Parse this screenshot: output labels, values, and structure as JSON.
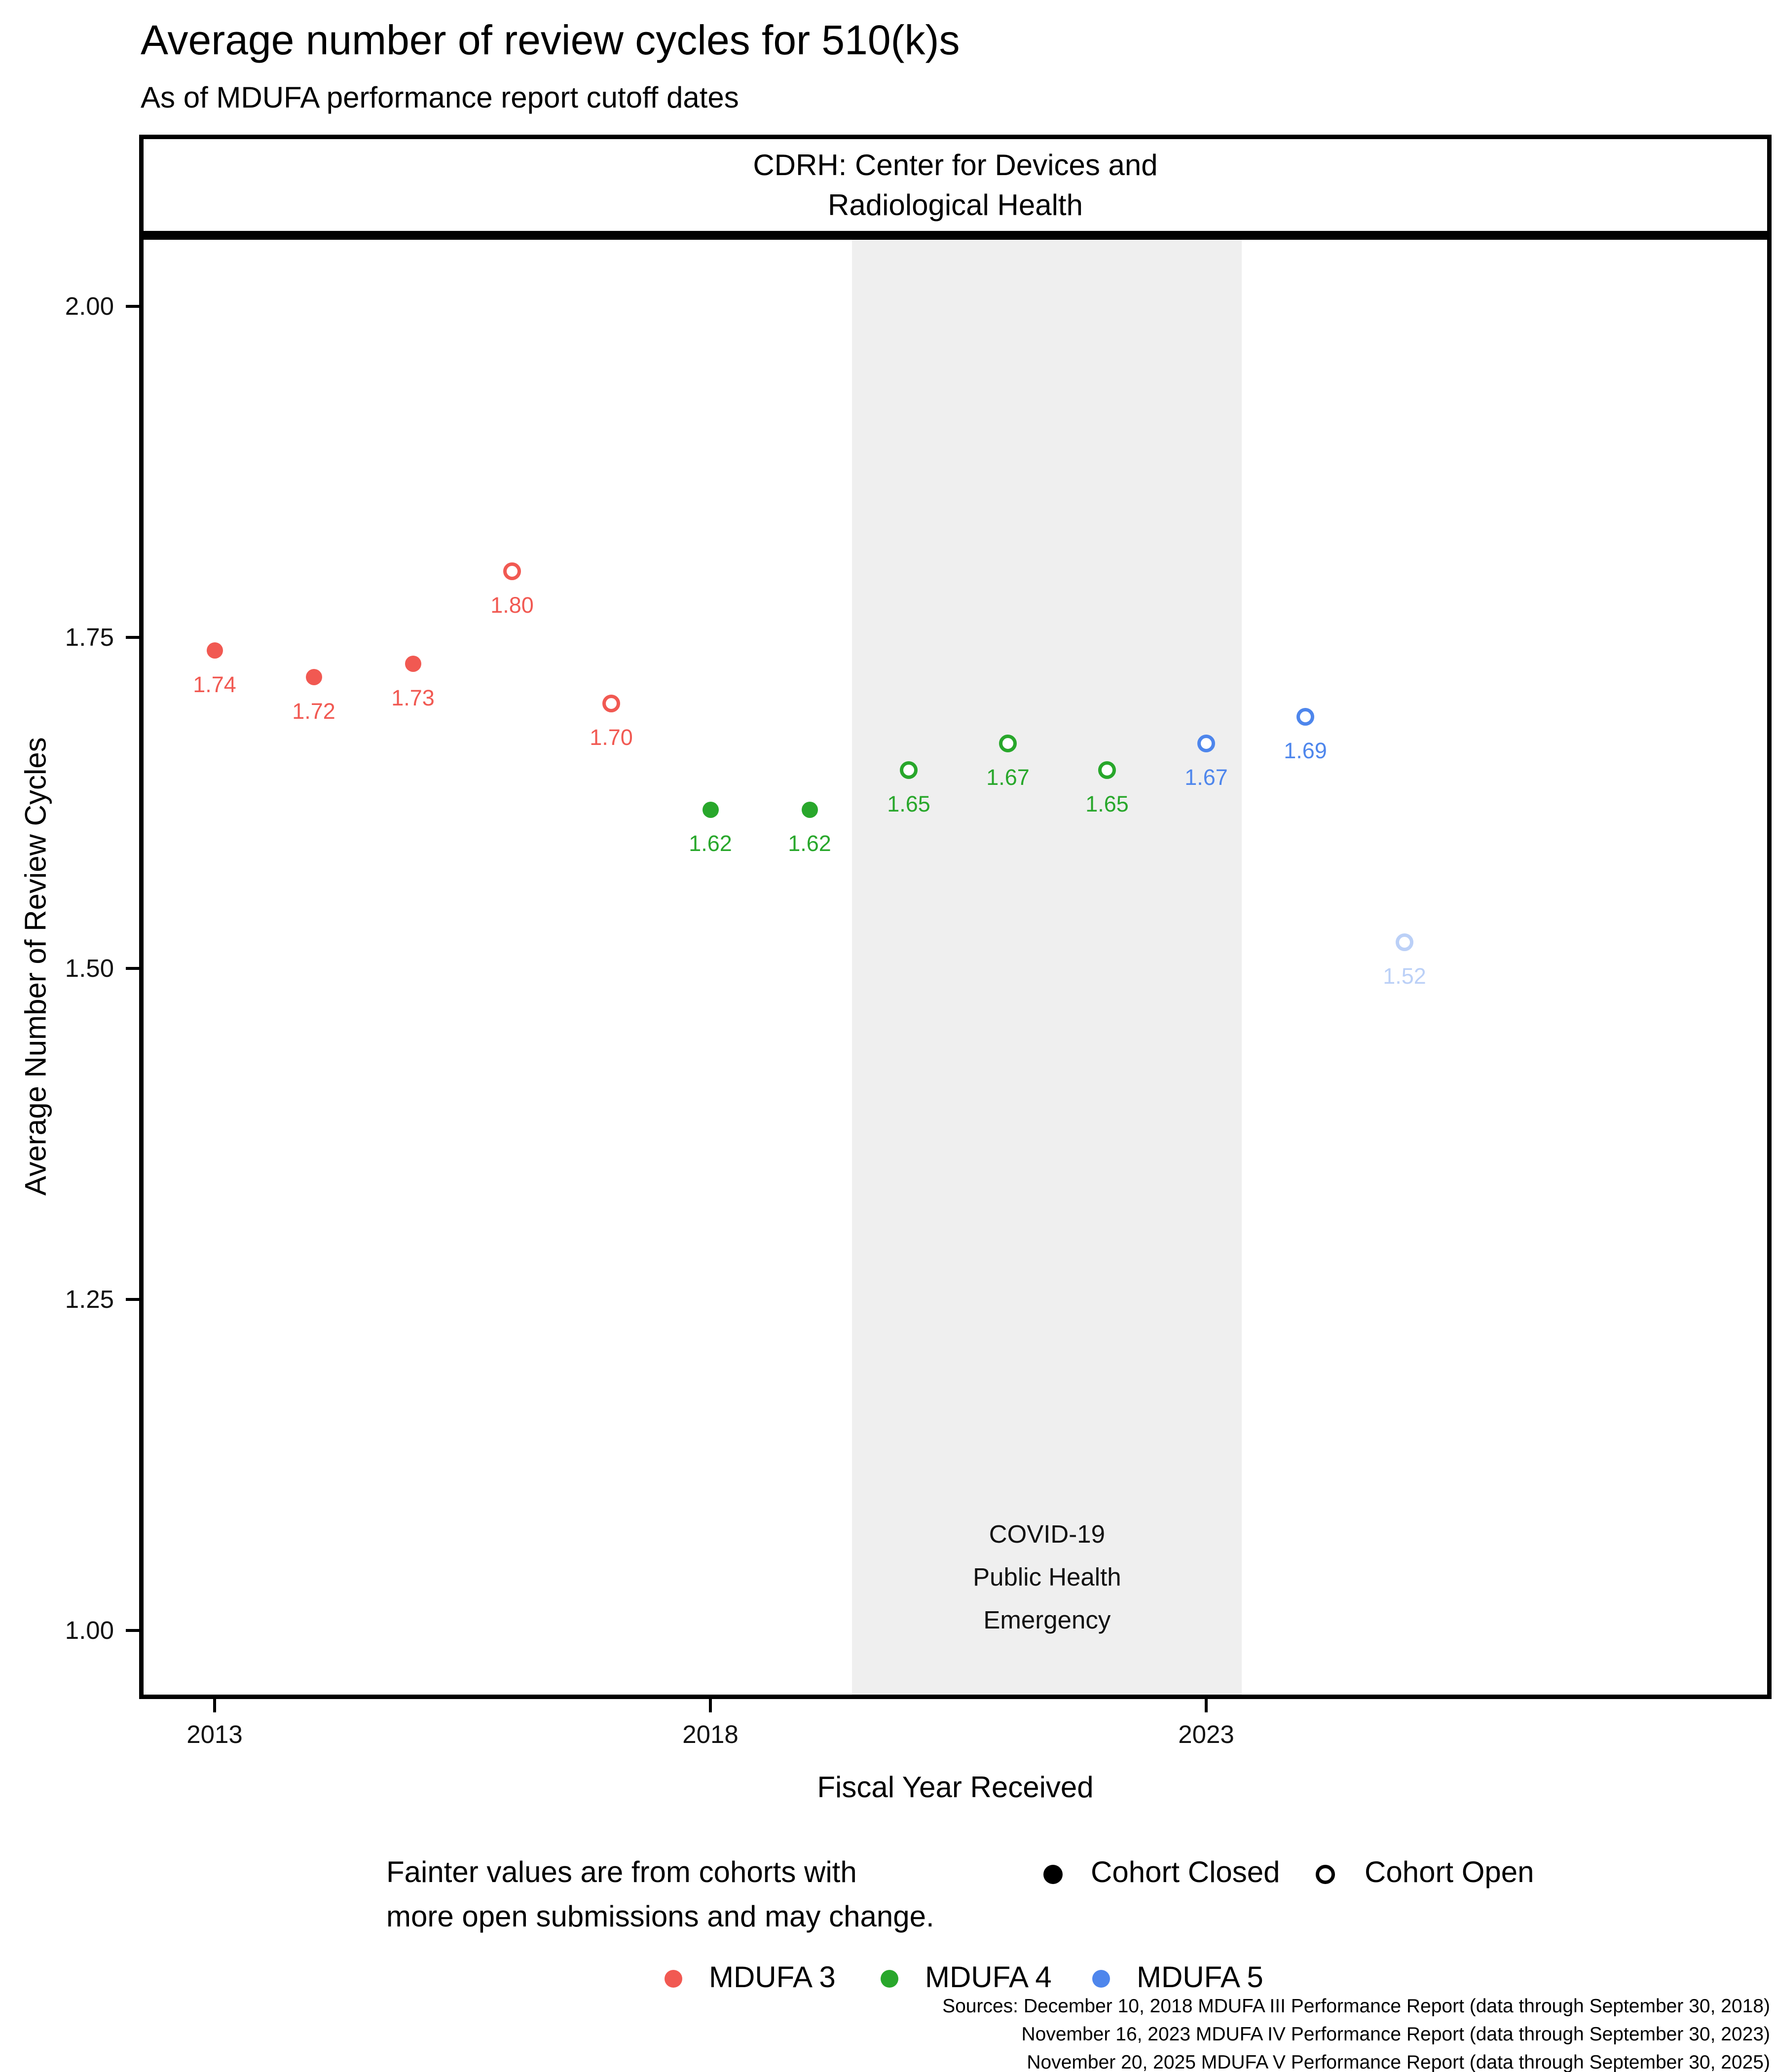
{
  "header": {
    "title": "Average number of review cycles for 510(k)s",
    "subtitle": "As of MDUFA performance report cutoff dates"
  },
  "facet": {
    "strip_label": "CDRH: Center for Devices and\nRadiological Health"
  },
  "chart_data": {
    "type": "scatter",
    "title": "Average number of review cycles for 510(k)s",
    "subtitle": "As of MDUFA performance report cutoff dates",
    "facet_label": "CDRH: Center for Devices and Radiological Health",
    "xlabel": "Fiscal Year Received",
    "ylabel": "Average Number of Review Cycles",
    "x_ticks": [
      2013,
      2018,
      2023
    ],
    "y_ticks": [
      2.0,
      1.75,
      1.5,
      1.25,
      1.0
    ],
    "y_tick_labels": [
      "2.00",
      "1.75",
      "1.50",
      "1.25",
      "1.00"
    ],
    "xlim": [
      2012.24,
      2028.7
    ],
    "ylim": [
      0.95,
      2.05
    ],
    "grid": "off",
    "legend_position": "bottom",
    "series": [
      {
        "name": "MDUFA 3",
        "color": "#F15952",
        "points": [
          {
            "fiscal_year": 2013,
            "value": 1.74,
            "label": "1.74",
            "cohort": "closed",
            "faint": false
          },
          {
            "fiscal_year": 2014,
            "value": 1.72,
            "label": "1.72",
            "cohort": "closed",
            "faint": false
          },
          {
            "fiscal_year": 2015,
            "value": 1.73,
            "label": "1.73",
            "cohort": "closed",
            "faint": false
          },
          {
            "fiscal_year": 2016,
            "value": 1.8,
            "label": "1.80",
            "cohort": "open",
            "faint": false
          },
          {
            "fiscal_year": 2017,
            "value": 1.7,
            "label": "1.70",
            "cohort": "open",
            "faint": false
          }
        ]
      },
      {
        "name": "MDUFA 4",
        "color": "#28A72B",
        "points": [
          {
            "fiscal_year": 2018,
            "value": 1.62,
            "label": "1.62",
            "cohort": "closed",
            "faint": false
          },
          {
            "fiscal_year": 2019,
            "value": 1.62,
            "label": "1.62",
            "cohort": "closed",
            "faint": false
          },
          {
            "fiscal_year": 2020,
            "value": 1.65,
            "label": "1.65",
            "cohort": "open",
            "faint": false
          },
          {
            "fiscal_year": 2021,
            "value": 1.67,
            "label": "1.67",
            "cohort": "open",
            "faint": false
          },
          {
            "fiscal_year": 2022,
            "value": 1.65,
            "label": "1.65",
            "cohort": "open",
            "faint": false
          }
        ]
      },
      {
        "name": "MDUFA 5",
        "color": "#4E86EC",
        "points": [
          {
            "fiscal_year": 2023,
            "value": 1.67,
            "label": "1.67",
            "cohort": "open",
            "faint": false
          },
          {
            "fiscal_year": 2024,
            "value": 1.69,
            "label": "1.69",
            "cohort": "open",
            "faint": false
          },
          {
            "fiscal_year": 2025,
            "value": 1.52,
            "label": "1.52",
            "cohort": "open",
            "faint": true
          }
        ]
      }
    ],
    "annotations": {
      "covid_band": {
        "label": "COVID-19\nPublic Health\nEmergency",
        "x_start": 2019.43,
        "x_end": 2023.36
      }
    }
  },
  "legend": {
    "caption": "Fainter values are from cohorts with\nmore open submissions and may change.",
    "shape_items": [
      {
        "label": "Cohort Closed",
        "marker": "filled"
      },
      {
        "label": "Cohort Open",
        "marker": "open"
      }
    ],
    "color_items": [
      {
        "label": "MDUFA 3",
        "color": "#F15952"
      },
      {
        "label": "MDUFA 4",
        "color": "#28A72B"
      },
      {
        "label": "MDUFA 5",
        "color": "#4E86EC"
      }
    ]
  },
  "footer": {
    "sources": "Sources: December 10, 2018 MDUFA III Performance Report (data through September 30, 2018)\nNovember 16, 2023 MDUFA IV Performance Report (data through September 30, 2023)\nNovember 20, 2025 MDUFA V Performance Report (data through September 30, 2025)"
  },
  "colors": {
    "band": "#EFEFEF",
    "axis": "#000000",
    "mdufa3": "#F15952",
    "mdufa4": "#28A72B",
    "mdufa5": "#4E86EC",
    "faint_opacity": 0.38
  }
}
